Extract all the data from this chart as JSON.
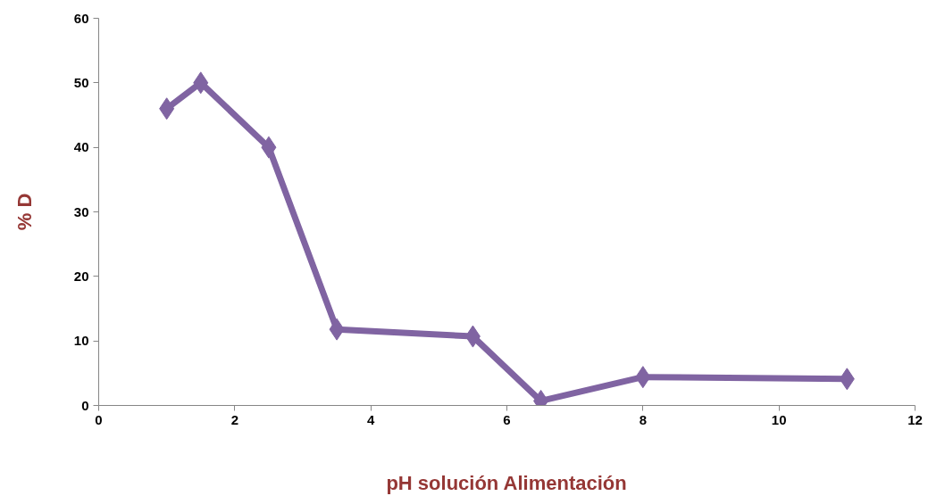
{
  "chart_data": {
    "type": "line",
    "xlabel": "pH solución Alimentación",
    "ylabel": "% D",
    "x": [
      1,
      1.5,
      2.5,
      3.5,
      5.5,
      6.5,
      8,
      11
    ],
    "series": [
      {
        "color": "#8064a2",
        "values": [
          46,
          50,
          40,
          11.8,
          10.7,
          0.7,
          4.4,
          4.1
        ]
      }
    ],
    "xlim": [
      0,
      12
    ],
    "xticks": [
      0,
      2,
      4,
      6,
      8,
      10,
      12
    ],
    "ylim": [
      0,
      60
    ],
    "yticks": [
      0,
      10,
      20,
      30,
      40,
      50,
      60
    ],
    "marker": "diamond",
    "grid": false,
    "line_style": "solid"
  }
}
